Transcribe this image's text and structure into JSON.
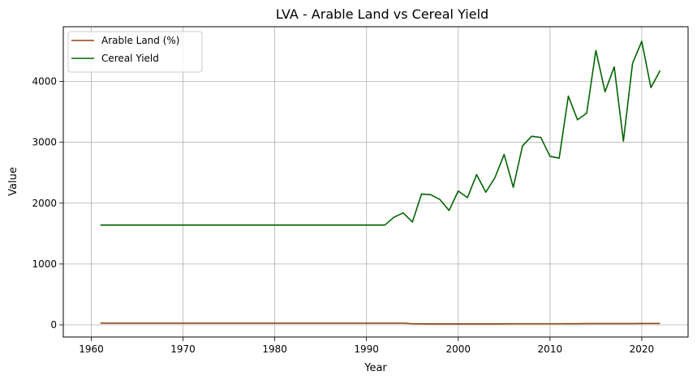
{
  "chart_data": {
    "type": "line",
    "title": "LVA - Arable Land vs Cereal Yield",
    "xlabel": "Year",
    "ylabel": "Value",
    "xlim": [
      1956.95,
      2025.05
    ],
    "ylim": [
      -200,
      4900
    ],
    "x_ticks": [
      1960,
      1970,
      1980,
      1990,
      2000,
      2010,
      2020
    ],
    "y_ticks": [
      0,
      1000,
      2000,
      3000,
      4000
    ],
    "grid": true,
    "legend_position": "top-left",
    "series": [
      {
        "name": "Arable Land (%)",
        "color": "#8B4513",
        "x": [
          1961,
          1962,
          1963,
          1964,
          1965,
          1966,
          1967,
          1968,
          1969,
          1970,
          1971,
          1972,
          1973,
          1974,
          1975,
          1976,
          1977,
          1978,
          1979,
          1980,
          1981,
          1982,
          1983,
          1984,
          1985,
          1986,
          1987,
          1988,
          1989,
          1990,
          1991,
          1992,
          1993,
          1994,
          1995,
          1996,
          1997,
          1998,
          1999,
          2000,
          2001,
          2002,
          2003,
          2004,
          2005,
          2006,
          2007,
          2008,
          2009,
          2010,
          2011,
          2012,
          2013,
          2014,
          2015,
          2016,
          2017,
          2018,
          2019,
          2020,
          2021,
          2022
        ],
        "values": [
          27,
          27,
          27,
          27,
          27,
          27,
          27,
          27,
          27,
          27,
          27,
          27,
          27,
          27,
          27,
          27,
          27,
          27,
          27,
          27,
          27,
          27,
          27,
          27,
          27,
          27,
          27,
          27,
          27,
          27,
          27,
          27,
          27,
          27,
          18,
          17,
          16,
          16,
          15,
          15,
          15,
          15,
          15,
          15,
          17,
          18,
          18,
          18,
          18,
          18,
          18,
          19,
          19,
          20,
          20,
          21,
          21,
          21,
          21,
          22,
          22,
          22
        ]
      },
      {
        "name": "Cereal Yield",
        "color": "#006400",
        "x": [
          1961,
          1962,
          1963,
          1964,
          1965,
          1966,
          1967,
          1968,
          1969,
          1970,
          1971,
          1972,
          1973,
          1974,
          1975,
          1976,
          1977,
          1978,
          1979,
          1980,
          1981,
          1982,
          1983,
          1984,
          1985,
          1986,
          1987,
          1988,
          1989,
          1990,
          1991,
          1992,
          1993,
          1994,
          1995,
          1996,
          1997,
          1998,
          1999,
          2000,
          2001,
          2002,
          2003,
          2004,
          2005,
          2006,
          2007,
          2008,
          2009,
          2010,
          2011,
          2012,
          2013,
          2014,
          2015,
          2016,
          2017,
          2018,
          2019,
          2020,
          2021,
          2022
        ],
        "values": [
          1640,
          1640,
          1640,
          1640,
          1640,
          1640,
          1640,
          1640,
          1640,
          1640,
          1640,
          1640,
          1640,
          1640,
          1640,
          1640,
          1640,
          1640,
          1640,
          1640,
          1640,
          1640,
          1640,
          1640,
          1640,
          1640,
          1640,
          1640,
          1640,
          1640,
          1640,
          1640,
          1770,
          1840,
          1690,
          2150,
          2140,
          2060,
          1880,
          2200,
          2090,
          2470,
          2180,
          2420,
          2800,
          2260,
          2940,
          3100,
          3080,
          2770,
          2740,
          3760,
          3370,
          3480,
          4510,
          3830,
          4240,
          3020,
          4300,
          4660,
          3900,
          4180
        ]
      }
    ]
  }
}
